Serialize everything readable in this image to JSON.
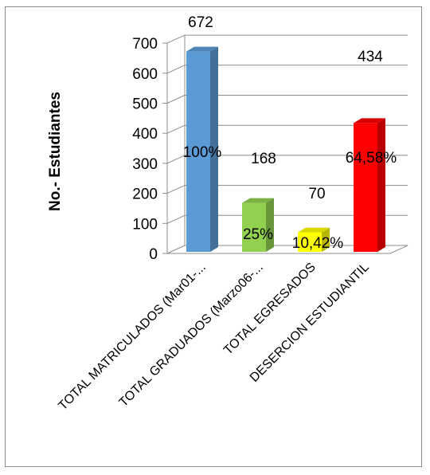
{
  "chart_data": {
    "type": "bar",
    "ylabel": "No.- Estudiantes",
    "xlabel": "",
    "ylim": [
      0,
      700
    ],
    "yticks": [
      0,
      100,
      200,
      300,
      400,
      500,
      600,
      700
    ],
    "grid": true,
    "legend": "none",
    "categories": [
      "TOTAL MATRICULADOS  (Mar01-...",
      "TOTAL GRADUADOS (Marzo06-...",
      "TOTAL EGRESADOS",
      "DESERCION ESTUDIANTIL"
    ],
    "values": [
      672,
      168,
      70,
      434
    ],
    "value_labels": [
      "672",
      "168",
      "70",
      "434"
    ],
    "percent_labels": [
      "100%",
      "25%",
      "10,42%",
      "64,58%"
    ],
    "colors": [
      "#5b9bd5",
      "#92d050",
      "#ffff00",
      "#ff0000"
    ]
  }
}
